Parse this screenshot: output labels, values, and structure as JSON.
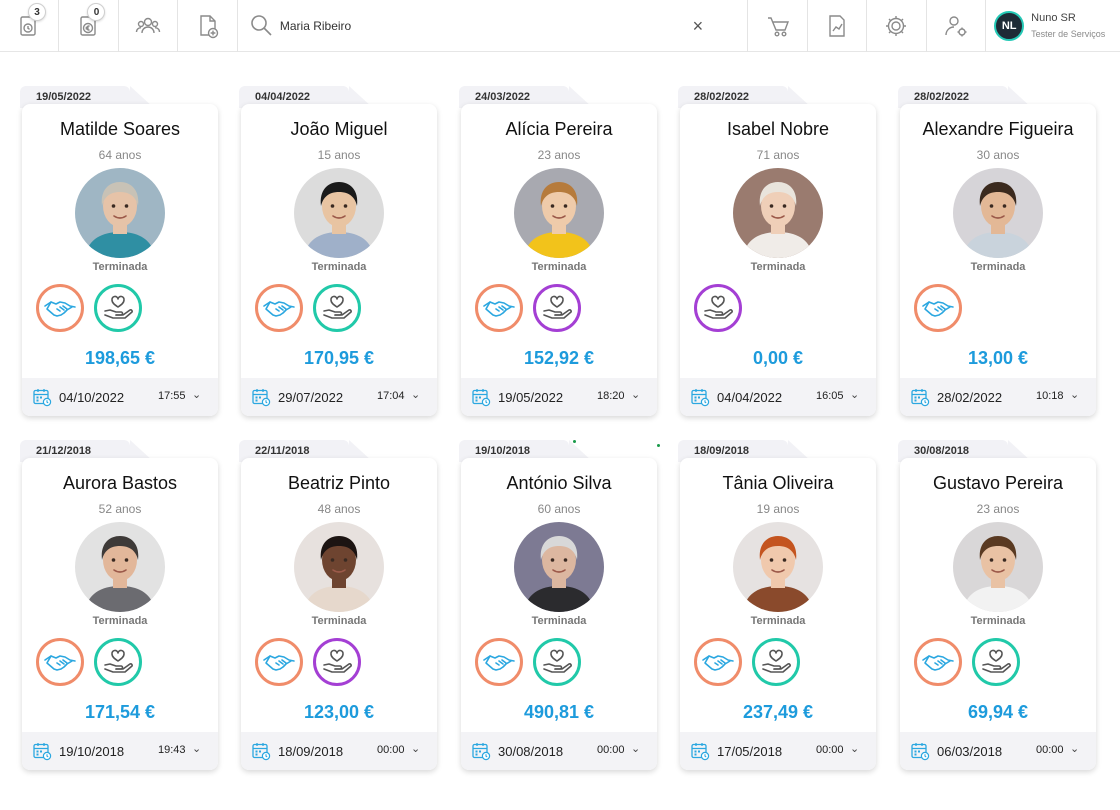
{
  "topbar": {
    "buttons": [
      {
        "name": "timer-icon",
        "badge": "3"
      },
      {
        "name": "euro-document-icon",
        "badge": "0"
      },
      {
        "name": "group-icon",
        "badge": ""
      },
      {
        "name": "add-document-icon",
        "badge": ""
      }
    ],
    "search": {
      "value": "Maria Ribeiro",
      "placeholder": ""
    },
    "clear_label": "×",
    "right_buttons": [
      "cart-icon",
      "chart-document-icon",
      "settings-icon",
      "user-settings-icon"
    ],
    "user": {
      "initials": "NL",
      "name": "Nuno SR",
      "role": "Tester de Serviços"
    }
  },
  "cards": [
    {
      "date": "19/05/2022",
      "name": "Matilde Soares",
      "age": "64 anos",
      "status": "Terminada",
      "services": [
        "hand",
        "care-teal"
      ],
      "amount": "198,65 €",
      "footer_date": "04/10/2022",
      "footer_time": "17:55",
      "photo": {
        "bg": "#9fb6c4",
        "hair": "#c8c2b6",
        "skin": "#e6c3a8",
        "shirt": "#2f8fa3"
      }
    },
    {
      "date": "04/04/2022",
      "name": "João Miguel",
      "age": "15 anos",
      "status": "Terminada",
      "services": [
        "hand",
        "care-teal"
      ],
      "amount": "170,95 €",
      "footer_date": "29/07/2022",
      "footer_time": "17:04",
      "photo": {
        "bg": "#dcdcdc",
        "hair": "#1a1a1a",
        "skin": "#e8c4a2",
        "shirt": "#9fb0c9"
      }
    },
    {
      "date": "24/03/2022",
      "name": "Alícia Pereira",
      "age": "23 anos",
      "status": "Terminada",
      "services": [
        "hand",
        "care-purple"
      ],
      "amount": "152,92 €",
      "footer_date": "19/05/2022",
      "footer_time": "18:20",
      "photo": {
        "bg": "#a8a9b0",
        "hair": "#b67b3c",
        "skin": "#efcbaa",
        "shirt": "#f2c31b"
      }
    },
    {
      "date": "28/02/2022",
      "name": "Isabel Nobre",
      "age": "71 anos",
      "status": "Terminada",
      "services": [
        "care-purple"
      ],
      "amount": "0,00 €",
      "footer_date": "04/04/2022",
      "footer_time": "16:05",
      "photo": {
        "bg": "#9a7b6f",
        "hair": "#e9e4dc",
        "skin": "#efcfb8",
        "shirt": "#f0ece8"
      }
    },
    {
      "date": "28/02/2022",
      "name": "Alexandre Figueira",
      "age": "30 anos",
      "status": "Terminada",
      "services": [
        "hand"
      ],
      "amount": "13,00 €",
      "footer_date": "28/02/2022",
      "footer_time": "10:18",
      "photo": {
        "bg": "#d6d4d8",
        "hair": "#3b2a1e",
        "skin": "#e3b896",
        "shirt": "#c9d3dc"
      }
    },
    {
      "date": "21/12/2018",
      "name": "Aurora Bastos",
      "age": "52 anos",
      "status": "Terminada",
      "services": [
        "hand",
        "care-teal"
      ],
      "amount": "171,54 €",
      "footer_date": "19/10/2018",
      "footer_time": "19:43",
      "photo": {
        "bg": "#e2e2e2",
        "hair": "#3e3a38",
        "skin": "#e2b79a",
        "shirt": "#6b6b70"
      }
    },
    {
      "date": "22/11/2018",
      "name": "Beatriz Pinto",
      "age": "48 anos",
      "status": "Terminada",
      "services": [
        "hand",
        "care-purple"
      ],
      "amount": "123,00 €",
      "footer_date": "18/09/2018",
      "footer_time": "00:00",
      "photo": {
        "bg": "#e7e1de",
        "hair": "#1c1412",
        "skin": "#6e4430",
        "shirt": "#e6d8cc"
      }
    },
    {
      "date": "19/10/2018",
      "name": "António Silva",
      "age": "60 anos",
      "status": "Terminada",
      "services": [
        "hand",
        "care-teal"
      ],
      "amount": "490,81 €",
      "footer_date": "30/08/2018",
      "footer_time": "00:00",
      "photo": {
        "bg": "#7d7a93",
        "hair": "#d8d8d8",
        "skin": "#dcb7a0",
        "shirt": "#2b2b2e"
      }
    },
    {
      "date": "18/09/2018",
      "name": "Tânia Oliveira",
      "age": "19 anos",
      "status": "Terminada",
      "services": [
        "hand",
        "care-teal"
      ],
      "amount": "237,49 €",
      "footer_date": "17/05/2018",
      "footer_time": "00:00",
      "photo": {
        "bg": "#e6e2e1",
        "hair": "#c4541f",
        "skin": "#f0c9ad",
        "shirt": "#8a4a2c"
      }
    },
    {
      "date": "30/08/2018",
      "name": "Gustavo Pereira",
      "age": "23 anos",
      "status": "Terminada",
      "services": [
        "hand",
        "care-teal"
      ],
      "amount": "69,94 €",
      "footer_date": "06/03/2018",
      "footer_time": "00:00",
      "photo": {
        "bg": "#d9d7d8",
        "hair": "#5a3a22",
        "skin": "#e9c2a4",
        "shirt": "#f2f2f2"
      }
    }
  ],
  "colors": {
    "accent": "#1d9bdc",
    "hand_ring": "#f08c6a",
    "care_teal": "#21c9a9",
    "care_purple": "#a43fd4"
  }
}
